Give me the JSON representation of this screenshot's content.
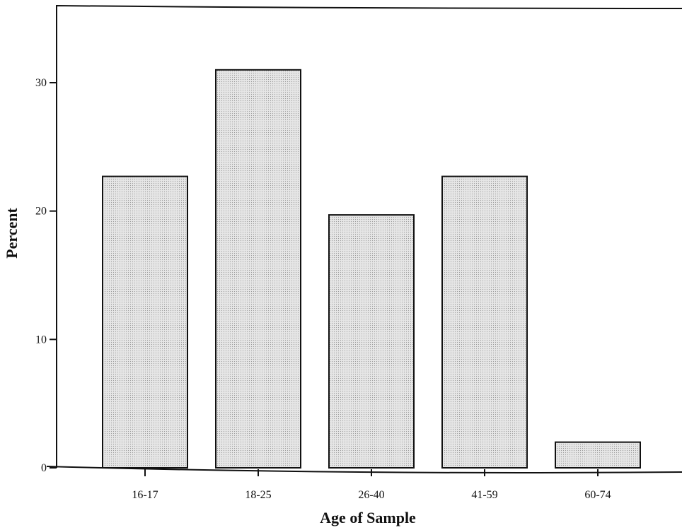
{
  "chart_data": {
    "type": "bar",
    "title": "",
    "xlabel": "Age of Sample",
    "ylabel": "Percent",
    "categories": [
      "16-17",
      "18-25",
      "26-40",
      "41-59",
      "60-74"
    ],
    "values": [
      22.7,
      31.0,
      19.7,
      22.7,
      2.0
    ],
    "ylim": [
      0,
      36
    ],
    "yticks": [
      "0",
      "10",
      "20",
      "30"
    ],
    "bar_color": "#dcdcdc",
    "grid": false,
    "legend": "none"
  }
}
